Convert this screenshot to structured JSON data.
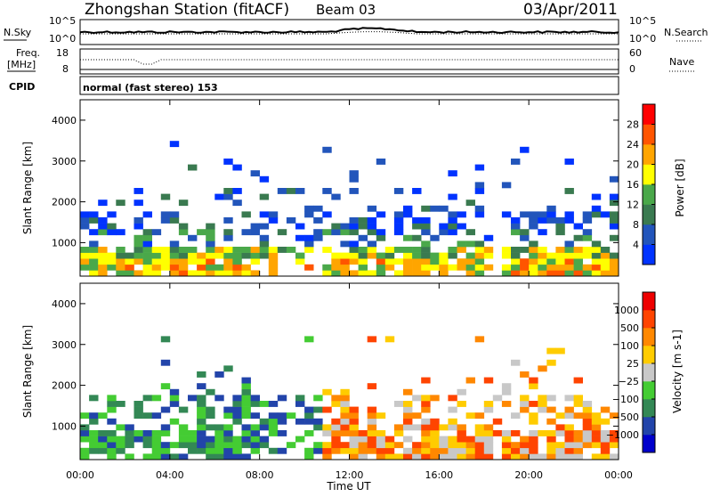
{
  "header": {
    "station": "Zhongshan Station (fitACF)",
    "beam": "Beam 03",
    "date": "03/Apr/2011"
  },
  "summary": {
    "nsky_label": "N.Sky",
    "nsearch_label": "N.Search",
    "noise_ticks_left": [
      "10^5",
      "10^0"
    ],
    "noise_ticks_right": [
      "10^5",
      "10^0"
    ],
    "freq_label": "Freq.",
    "freq_unit": "[MHz]",
    "freq_ticks": [
      "18",
      "8"
    ],
    "nave_label": "Nave",
    "nave_ticks": [
      "60",
      "0"
    ],
    "cpid_label": "CPID",
    "cpid_value": "normal (fast stereo) 153"
  },
  "chart_data": [
    {
      "type": "heatmap",
      "name": "Power",
      "ylabel": "Slant Range [km]",
      "yticks": [
        "4000",
        "3000",
        "2000",
        "1000"
      ],
      "ylim": [
        180,
        4500
      ],
      "colorbar_label": "Power [dB]",
      "colorbar_ticks": [
        "28",
        "24",
        "20",
        "16",
        "12",
        "8",
        "4"
      ],
      "colorbar_colors": [
        "#0033ff",
        "#2255bb",
        "#3a7a50",
        "#4aa84a",
        "#ffff00",
        "#ffa500",
        "#ff5500",
        "#ff0000"
      ]
    },
    {
      "type": "heatmap",
      "name": "Velocity",
      "ylabel": "Slant Range [km]",
      "yticks": [
        "4000",
        "3000",
        "2000",
        "1000"
      ],
      "ylim": [
        180,
        4500
      ],
      "colorbar_label": "Velocity [m s-1]",
      "colorbar_ticks": [
        "1000",
        "500",
        "100",
        "25",
        "−25",
        "−100",
        "−500",
        "−1000"
      ],
      "colorbar_colors": [
        "#0000cc",
        "#2244aa",
        "#338855",
        "#44cc33",
        "#c8c8c8",
        "#ffcc00",
        "#ff8800",
        "#ff4400",
        "#ee0000"
      ]
    }
  ],
  "xaxis": {
    "label": "Time UT",
    "ticks": [
      "00:00",
      "04:00",
      "08:00",
      "12:00",
      "16:00",
      "20:00",
      "00:00"
    ]
  }
}
